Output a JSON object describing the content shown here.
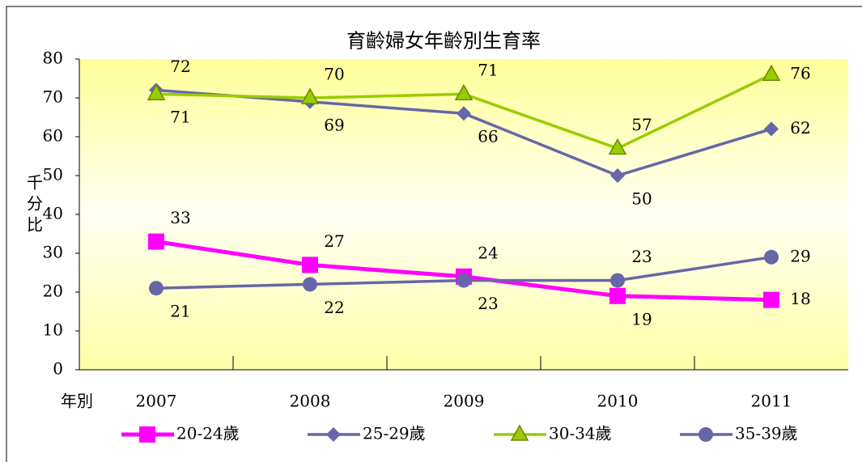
{
  "chart_data": {
    "type": "line",
    "title": "育齡婦女年齡別生育率",
    "ylabel": "千分比",
    "xlabel": "年別",
    "categories": [
      "2007",
      "2008",
      "2009",
      "2010",
      "2011"
    ],
    "series": [
      {
        "name": "20-24歲",
        "color": "#ff00ff",
        "marker": "square",
        "values": [
          33,
          27,
          24,
          19,
          18
        ]
      },
      {
        "name": "25-29歲",
        "color": "#6666a8",
        "marker": "diamond",
        "values": [
          72,
          69,
          66,
          50,
          62
        ]
      },
      {
        "name": "30-34歲",
        "color": "#99cc00",
        "marker": "triangle",
        "values": [
          71,
          70,
          71,
          57,
          76
        ]
      },
      {
        "name": "35-39歲",
        "color": "#6666a8",
        "marker": "circle",
        "values": [
          21,
          22,
          23,
          23,
          29
        ]
      }
    ],
    "ylim": [
      0,
      80
    ],
    "yticks": [
      0,
      10,
      20,
      30,
      40,
      50,
      60,
      70,
      80
    ],
    "legend": "bottom"
  }
}
